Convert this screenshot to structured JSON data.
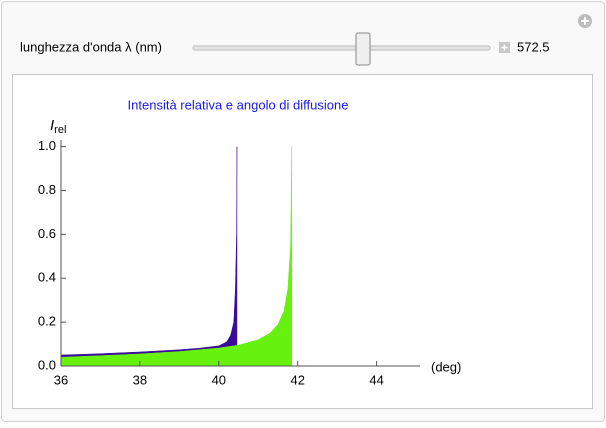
{
  "controls": {
    "label": "lunghezza d'onda λ (nm)",
    "value": "572.5"
  },
  "chart_data": {
    "type": "area",
    "title": "Intensità relativa e angolo di diffusione",
    "ylabel": "I",
    "ylabel_sub": "rel",
    "xlabel": "(deg)",
    "xlim": [
      36,
      45.1
    ],
    "xticks": [
      36,
      38,
      40,
      42,
      44
    ],
    "ylim": [
      0,
      1.03
    ],
    "yticks": [
      {
        "value": 0,
        "label": "0.0"
      },
      0.2,
      0.4,
      0.6,
      0.8,
      {
        "value": 1,
        "label": "1.0"
      }
    ],
    "series": [
      {
        "color": "#3a0a9a",
        "x": [
          36,
          37,
          38,
          39,
          39.5,
          40,
          40.2,
          40.3,
          40.38,
          40.42,
          40.45,
          40.46
        ],
        "values": [
          0.05,
          0.056,
          0.064,
          0.074,
          0.081,
          0.092,
          0.11,
          0.14,
          0.2,
          0.35,
          0.6,
          1.0
        ]
      },
      {
        "color": "#66f20e",
        "x": [
          36,
          37,
          38,
          39,
          40,
          40.5,
          41,
          41.3,
          41.5,
          41.65,
          41.75,
          41.82,
          41.85
        ],
        "values": [
          0.04,
          0.047,
          0.055,
          0.066,
          0.082,
          0.095,
          0.12,
          0.15,
          0.19,
          0.25,
          0.35,
          0.55,
          1.0
        ]
      }
    ]
  }
}
